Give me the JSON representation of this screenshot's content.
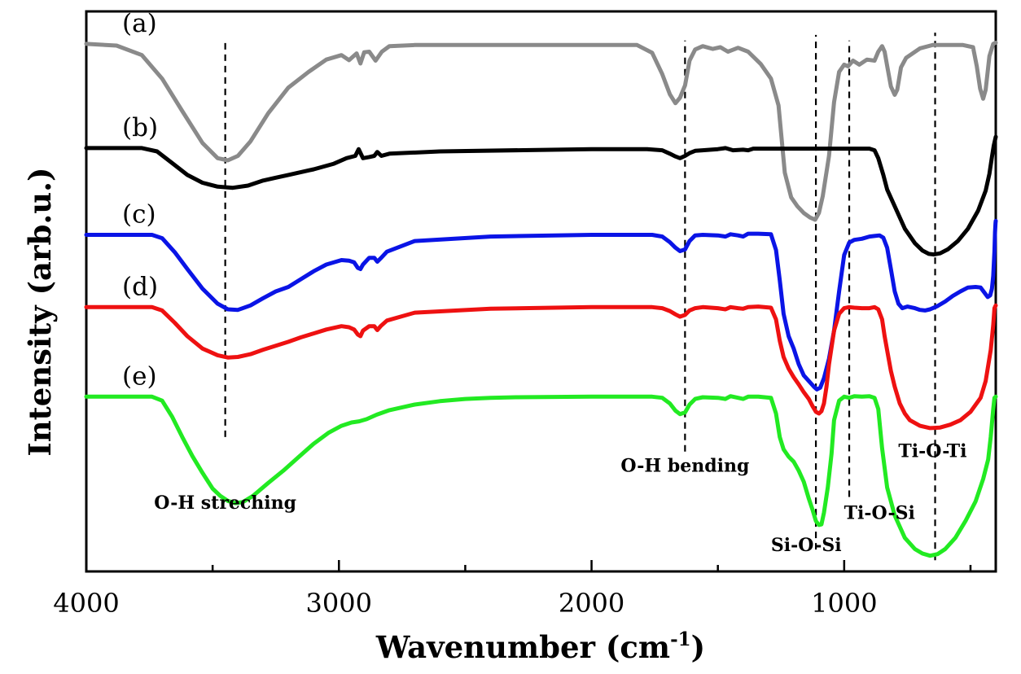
{
  "chart_data": {
    "type": "line",
    "title": "",
    "xlabel": "Wavenumber (cm",
    "xlabel_sup": "-1",
    "xlabel_close": ")",
    "ylabel": "Intensity (arb.u.)",
    "xlim": [
      4000,
      400
    ],
    "x_reversed": true,
    "ylim": [
      0,
      1
    ],
    "y_ticks_shown": false,
    "grid": false,
    "legend": "none",
    "x_ticks": [
      4000,
      3000,
      2000,
      1000
    ],
    "x_tick_labels": [
      "4000",
      "3000",
      "2000",
      "1000"
    ],
    "x_minor_ticks": [
      3500,
      2500,
      1500,
      500
    ],
    "series": [
      {
        "name": "(a)",
        "color": "#8a8a8a",
        "x": [
          4000,
          3880,
          3780,
          3700,
          3620,
          3540,
          3480,
          3440,
          3400,
          3350,
          3280,
          3200,
          3120,
          3050,
          2990,
          2960,
          2930,
          2915,
          2900,
          2880,
          2855,
          2830,
          2800,
          2700,
          2200,
          1820,
          1760,
          1720,
          1690,
          1668,
          1650,
          1630,
          1612,
          1590,
          1560,
          1520,
          1490,
          1460,
          1420,
          1380,
          1330,
          1290,
          1260,
          1235,
          1210,
          1185,
          1160,
          1135,
          1115,
          1100,
          1085,
          1060,
          1040,
          1020,
          1000,
          985,
          965,
          940,
          910,
          880,
          865,
          850,
          840,
          828,
          815,
          800,
          790,
          775,
          755,
          700,
          650,
          600,
          530,
          490,
          475,
          462,
          450,
          440,
          425,
          410,
          400
        ],
        "values": [
          0.942,
          0.939,
          0.922,
          0.88,
          0.822,
          0.765,
          0.738,
          0.734,
          0.742,
          0.768,
          0.818,
          0.864,
          0.892,
          0.914,
          0.922,
          0.913,
          0.925,
          0.907,
          0.927,
          0.928,
          0.912,
          0.928,
          0.938,
          0.94,
          0.94,
          0.94,
          0.926,
          0.888,
          0.852,
          0.836,
          0.846,
          0.868,
          0.912,
          0.932,
          0.938,
          0.933,
          0.936,
          0.928,
          0.935,
          0.928,
          0.906,
          0.88,
          0.832,
          0.712,
          0.668,
          0.652,
          0.64,
          0.632,
          0.628,
          0.64,
          0.67,
          0.742,
          0.838,
          0.892,
          0.905,
          0.902,
          0.912,
          0.905,
          0.914,
          0.912,
          0.928,
          0.938,
          0.928,
          0.898,
          0.866,
          0.851,
          0.86,
          0.9,
          0.917,
          0.934,
          0.94,
          0.94,
          0.94,
          0.936,
          0.902,
          0.862,
          0.844,
          0.86,
          0.92,
          0.942,
          0.944
        ]
      },
      {
        "name": "(b)",
        "color": "#000000",
        "x": [
          4000,
          3780,
          3720,
          3660,
          3600,
          3540,
          3480,
          3420,
          3360,
          3300,
          3250,
          3200,
          3100,
          3020,
          2970,
          2935,
          2922,
          2905,
          2880,
          2860,
          2848,
          2832,
          2800,
          2600,
          2000,
          1780,
          1720,
          1690,
          1668,
          1650,
          1630,
          1612,
          1590,
          1560,
          1500,
          1470,
          1440,
          1400,
          1380,
          1360,
          1300,
          1200,
          1000,
          940,
          900,
          880,
          865,
          845,
          830,
          800,
          760,
          720,
          690,
          665,
          645,
          620,
          590,
          550,
          510,
          470,
          440,
          425,
          415,
          408,
          400
        ],
        "values": [
          0.756,
          0.756,
          0.75,
          0.729,
          0.708,
          0.694,
          0.687,
          0.685,
          0.689,
          0.698,
          0.703,
          0.708,
          0.718,
          0.728,
          0.738,
          0.742,
          0.754,
          0.738,
          0.74,
          0.742,
          0.749,
          0.742,
          0.746,
          0.75,
          0.754,
          0.754,
          0.752,
          0.746,
          0.741,
          0.738,
          0.742,
          0.747,
          0.751,
          0.752,
          0.754,
          0.756,
          0.752,
          0.753,
          0.752,
          0.755,
          0.755,
          0.755,
          0.755,
          0.755,
          0.755,
          0.752,
          0.738,
          0.708,
          0.682,
          0.652,
          0.612,
          0.586,
          0.573,
          0.567,
          0.566,
          0.568,
          0.575,
          0.59,
          0.612,
          0.644,
          0.68,
          0.71,
          0.74,
          0.76,
          0.776
        ]
      },
      {
        "name": "(c)",
        "color": "#0a14e6",
        "x": [
          4000,
          3740,
          3700,
          3650,
          3600,
          3540,
          3480,
          3440,
          3400,
          3350,
          3300,
          3250,
          3200,
          3150,
          3100,
          3050,
          2990,
          2960,
          2940,
          2925,
          2915,
          2905,
          2880,
          2860,
          2848,
          2835,
          2810,
          2700,
          2400,
          2000,
          1760,
          1720,
          1690,
          1668,
          1650,
          1630,
          1612,
          1590,
          1560,
          1500,
          1470,
          1450,
          1420,
          1400,
          1380,
          1340,
          1290,
          1270,
          1255,
          1240,
          1220,
          1200,
          1180,
          1160,
          1140,
          1120,
          1108,
          1095,
          1080,
          1060,
          1040,
          1020,
          1000,
          980,
          960,
          930,
          900,
          880,
          860,
          845,
          830,
          815,
          800,
          785,
          770,
          750,
          720,
          700,
          680,
          660,
          630,
          600,
          570,
          540,
          510,
          480,
          460,
          445,
          432,
          422,
          415,
          410,
          405,
          403,
          401,
          400
        ],
        "values": [
          0.601,
          0.601,
          0.595,
          0.57,
          0.54,
          0.505,
          0.478,
          0.468,
          0.467,
          0.475,
          0.488,
          0.5,
          0.508,
          0.522,
          0.536,
          0.548,
          0.556,
          0.555,
          0.552,
          0.542,
          0.54,
          0.548,
          0.56,
          0.56,
          0.553,
          0.559,
          0.571,
          0.59,
          0.598,
          0.601,
          0.601,
          0.598,
          0.588,
          0.578,
          0.572,
          0.575,
          0.59,
          0.6,
          0.601,
          0.6,
          0.598,
          0.602,
          0.6,
          0.598,
          0.603,
          0.603,
          0.602,
          0.574,
          0.52,
          0.46,
          0.42,
          0.398,
          0.37,
          0.35,
          0.34,
          0.33,
          0.325,
          0.328,
          0.345,
          0.38,
          0.43,
          0.5,
          0.565,
          0.587,
          0.592,
          0.594,
          0.598,
          0.599,
          0.6,
          0.596,
          0.578,
          0.54,
          0.5,
          0.478,
          0.47,
          0.473,
          0.47,
          0.467,
          0.466,
          0.468,
          0.474,
          0.482,
          0.492,
          0.5,
          0.507,
          0.508,
          0.507,
          0.498,
          0.49,
          0.493,
          0.505,
          0.528,
          0.572,
          0.606,
          0.622,
          0.626
        ]
      },
      {
        "name": "(d)",
        "color": "#ee1111",
        "x": [
          4000,
          3740,
          3700,
          3650,
          3600,
          3540,
          3480,
          3440,
          3400,
          3350,
          3300,
          3250,
          3200,
          3150,
          3100,
          3050,
          2990,
          2960,
          2940,
          2925,
          2915,
          2905,
          2880,
          2860,
          2848,
          2835,
          2810,
          2700,
          2400,
          2000,
          1760,
          1720,
          1690,
          1668,
          1650,
          1630,
          1612,
          1590,
          1560,
          1500,
          1470,
          1450,
          1420,
          1400,
          1380,
          1340,
          1290,
          1270,
          1255,
          1240,
          1220,
          1200,
          1180,
          1160,
          1140,
          1125,
          1112,
          1100,
          1090,
          1080,
          1070,
          1060,
          1050,
          1040,
          1020,
          1000,
          980,
          960,
          930,
          900,
          880,
          865,
          850,
          840,
          828,
          815,
          800,
          780,
          760,
          740,
          700,
          660,
          620,
          580,
          540,
          500,
          460,
          440,
          420,
          410,
          405,
          400
        ],
        "values": [
          0.472,
          0.472,
          0.466,
          0.444,
          0.42,
          0.398,
          0.386,
          0.382,
          0.383,
          0.388,
          0.396,
          0.403,
          0.41,
          0.418,
          0.425,
          0.432,
          0.438,
          0.436,
          0.432,
          0.423,
          0.42,
          0.43,
          0.438,
          0.438,
          0.431,
          0.438,
          0.448,
          0.462,
          0.469,
          0.472,
          0.472,
          0.47,
          0.465,
          0.459,
          0.455,
          0.458,
          0.466,
          0.47,
          0.472,
          0.47,
          0.468,
          0.472,
          0.47,
          0.469,
          0.472,
          0.473,
          0.471,
          0.45,
          0.412,
          0.383,
          0.362,
          0.347,
          0.334,
          0.32,
          0.308,
          0.295,
          0.285,
          0.282,
          0.286,
          0.3,
          0.33,
          0.37,
          0.4,
          0.43,
          0.46,
          0.47,
          0.472,
          0.471,
          0.47,
          0.47,
          0.472,
          0.468,
          0.45,
          0.42,
          0.39,
          0.358,
          0.33,
          0.3,
          0.282,
          0.27,
          0.26,
          0.256,
          0.257,
          0.262,
          0.27,
          0.285,
          0.31,
          0.34,
          0.395,
          0.44,
          0.47,
          0.475
        ]
      },
      {
        "name": "(e)",
        "color": "#22ea22",
        "x": [
          4000,
          3740,
          3700,
          3660,
          3620,
          3580,
          3540,
          3500,
          3470,
          3440,
          3410,
          3380,
          3340,
          3280,
          3220,
          3160,
          3100,
          3040,
          2990,
          2950,
          2920,
          2890,
          2850,
          2800,
          2700,
          2600,
          2500,
          2400,
          2300,
          2000,
          1760,
          1720,
          1690,
          1668,
          1650,
          1630,
          1612,
          1590,
          1560,
          1500,
          1470,
          1450,
          1420,
          1400,
          1380,
          1340,
          1290,
          1270,
          1255,
          1240,
          1220,
          1200,
          1180,
          1160,
          1140,
          1125,
          1112,
          1100,
          1090,
          1080,
          1065,
          1050,
          1040,
          1020,
          1000,
          980,
          960,
          930,
          900,
          880,
          865,
          850,
          830,
          800,
          760,
          720,
          690,
          660,
          630,
          600,
          560,
          520,
          480,
          450,
          430,
          420,
          410,
          405,
          400
        ],
        "values": [
          0.312,
          0.312,
          0.305,
          0.276,
          0.24,
          0.206,
          0.176,
          0.148,
          0.135,
          0.126,
          0.122,
          0.124,
          0.135,
          0.158,
          0.18,
          0.204,
          0.228,
          0.248,
          0.26,
          0.266,
          0.268,
          0.272,
          0.28,
          0.288,
          0.298,
          0.304,
          0.308,
          0.31,
          0.311,
          0.312,
          0.312,
          0.31,
          0.3,
          0.287,
          0.281,
          0.284,
          0.298,
          0.308,
          0.311,
          0.31,
          0.308,
          0.313,
          0.31,
          0.308,
          0.312,
          0.312,
          0.31,
          0.282,
          0.24,
          0.218,
          0.205,
          0.196,
          0.18,
          0.16,
          0.13,
          0.11,
          0.09,
          0.083,
          0.084,
          0.105,
          0.15,
          0.21,
          0.27,
          0.305,
          0.312,
          0.31,
          0.313,
          0.312,
          0.313,
          0.31,
          0.29,
          0.22,
          0.15,
          0.1,
          0.06,
          0.04,
          0.032,
          0.028,
          0.031,
          0.04,
          0.06,
          0.09,
          0.125,
          0.165,
          0.2,
          0.24,
          0.29,
          0.31,
          0.312
        ]
      }
    ],
    "reference_lines": [
      {
        "x": 3450,
        "y_from": 0.24,
        "y_to": 0.948
      },
      {
        "x": 1630,
        "y_from": 0.214,
        "y_to": 0.948
      },
      {
        "x": 1112,
        "y_from": 0.039,
        "y_to": 0.958
      },
      {
        "x": 980,
        "y_from": 0.133,
        "y_to": 0.948
      },
      {
        "x": 640,
        "y_from": 0.02,
        "y_to": 0.962
      }
    ],
    "annotations": [
      {
        "text": "O-H streching",
        "x": 3450,
        "y": 0.112
      },
      {
        "text": "O-H bending",
        "x": 1630,
        "y": 0.178
      },
      {
        "text": "Ti-O-Si",
        "x": 860,
        "y": 0.094
      },
      {
        "text": "Si-O-Si",
        "x": 1150,
        "y": 0.036
      },
      {
        "text": "Ti-O-Ti",
        "x": 650,
        "y": 0.204
      }
    ]
  }
}
